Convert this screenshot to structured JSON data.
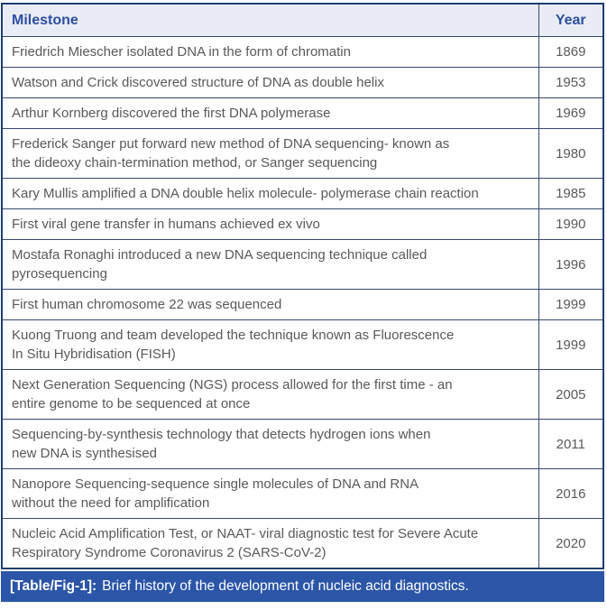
{
  "table": {
    "columns": [
      "Milestone",
      "Year"
    ],
    "rows": [
      {
        "milestone": "Friedrich Miescher isolated DNA in the form of chromatin",
        "year": "1869"
      },
      {
        "milestone": "Watson and Crick discovered structure of DNA as double helix",
        "year": "1953"
      },
      {
        "milestone": "Arthur Kornberg discovered the first DNA polymerase",
        "year": "1969"
      },
      {
        "milestone": "Frederick Sanger put forward new method of DNA sequencing- known as\nthe dideoxy chain-termination method, or Sanger sequencing",
        "year": "1980"
      },
      {
        "milestone": "Kary Mullis amplified a DNA double helix molecule- polymerase chain reaction",
        "year": "1985"
      },
      {
        "milestone": "First viral gene transfer in humans achieved ex vivo",
        "year": "1990"
      },
      {
        "milestone": "Mostafa Ronaghi introduced a new DNA sequencing technique called\npyrosequencing",
        "year": "1996"
      },
      {
        "milestone": "First human chromosome 22 was sequenced",
        "year": "1999"
      },
      {
        "milestone": "Kuong Truong and team developed the technique known as Fluorescence\nIn Situ Hybridisation (FISH)",
        "year": "1999"
      },
      {
        "milestone": "Next Generation Sequencing (NGS) process allowed for the first time - an\nentire genome to be sequenced at once",
        "year": "2005"
      },
      {
        "milestone": "Sequencing-by-synthesis technology that detects hydrogen ions when\nnew DNA is synthesised",
        "year": "2011"
      },
      {
        "milestone": "Nanopore Sequencing-sequence single molecules of DNA and RNA\nwithout the need for amplification",
        "year": "2016"
      },
      {
        "milestone": "Nucleic Acid Amplification Test, or NAAT- viral diagnostic test for Severe Acute\nRespiratory Syndrome Coronavirus 2 (SARS-CoV-2)",
        "year": "2020"
      }
    ]
  },
  "caption": {
    "label": "[Table/Fig-1]:",
    "text": "Brief history of the development of nucleic acid diagnostics."
  },
  "colors": {
    "header_bg": "#eaecf5",
    "header_text": "#2d4fa1",
    "outer_border": "#1d3d6e",
    "inner_border": "#32486e",
    "body_text": "#58595b",
    "caption_bg": "#2b55a7",
    "caption_text": "#ffffff"
  }
}
